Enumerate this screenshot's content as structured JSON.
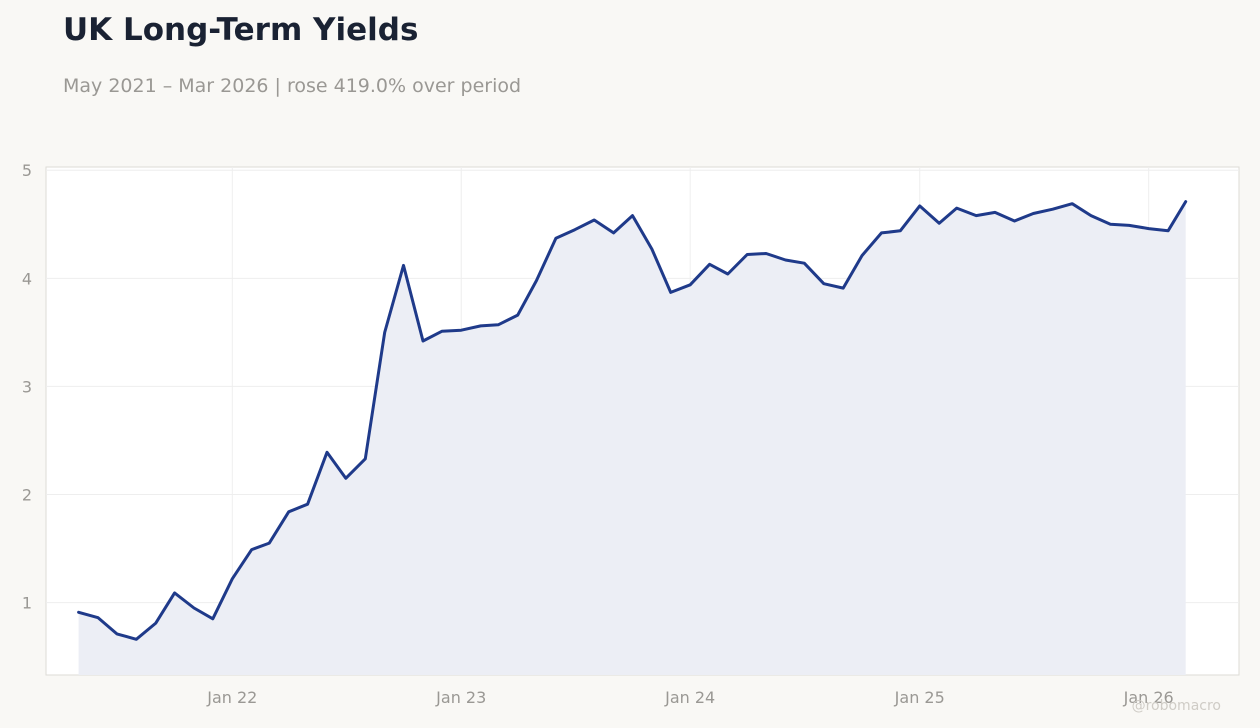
{
  "header": {
    "title": "UK Long-Term Yields",
    "subtitle": "May 2021 – Mar 2026 | rose 419.0% over period"
  },
  "watermark": "@robomacro",
  "colors": {
    "background": "#f9f8f5",
    "plot_background": "#ffffff",
    "line": "#1f3a8a",
    "fill": "#eceef5",
    "grid": "#eeeeee",
    "text_muted": "#9a9894"
  },
  "chart_data": {
    "type": "area",
    "title": "UK Long-Term Yields",
    "subtitle": "May 2021 – Mar 2026 | rose 419.0% over period",
    "xlabel": "",
    "ylabel": "",
    "x_start": "2021-05",
    "x_end": "2026-03",
    "xlim": [
      "2021-03-10",
      "2026-05-25"
    ],
    "ylim": [
      0.33,
      5.03
    ],
    "yticks": [
      1,
      2,
      3,
      4,
      5
    ],
    "xticks": [
      {
        "date": "2022-01-01",
        "label": "Jan 22"
      },
      {
        "date": "2023-01-01",
        "label": "Jan 23"
      },
      {
        "date": "2024-01-01",
        "label": "Jan 24"
      },
      {
        "date": "2025-01-01",
        "label": "Jan 25"
      },
      {
        "date": "2026-01-01",
        "label": "Jan 26"
      }
    ],
    "grid": true,
    "legend": "none",
    "series": [
      {
        "x": [
          "2021-05",
          "2021-06",
          "2021-07",
          "2021-08",
          "2021-09",
          "2021-10",
          "2021-11",
          "2021-12",
          "2022-01",
          "2022-02",
          "2022-03",
          "2022-04",
          "2022-05",
          "2022-06",
          "2022-07",
          "2022-08",
          "2022-09",
          "2022-10",
          "2022-11",
          "2022-12",
          "2023-01",
          "2023-02",
          "2023-03",
          "2023-04",
          "2023-05",
          "2023-06",
          "2023-07",
          "2023-08",
          "2023-09",
          "2023-10",
          "2023-11",
          "2023-12",
          "2024-01",
          "2024-02",
          "2024-03",
          "2024-04",
          "2024-05",
          "2024-06",
          "2024-07",
          "2024-08",
          "2024-09",
          "2024-10",
          "2024-11",
          "2024-12",
          "2025-01",
          "2025-02",
          "2025-03",
          "2025-04",
          "2025-05",
          "2025-06",
          "2025-07",
          "2025-08",
          "2025-09",
          "2025-10",
          "2025-11",
          "2025-12",
          "2026-01",
          "2026-02",
          "2026-03"
        ],
        "values": [
          0.91,
          0.86,
          0.71,
          0.66,
          0.81,
          1.09,
          0.95,
          0.85,
          1.22,
          1.49,
          1.55,
          1.84,
          1.91,
          2.39,
          2.15,
          2.33,
          3.5,
          4.12,
          3.42,
          3.51,
          3.52,
          3.56,
          3.57,
          3.66,
          3.98,
          4.37,
          4.45,
          4.54,
          4.42,
          4.58,
          4.27,
          3.87,
          3.94,
          4.13,
          4.04,
          4.22,
          4.23,
          4.17,
          4.14,
          3.95,
          3.91,
          4.21,
          4.42,
          4.44,
          4.67,
          4.51,
          4.65,
          4.58,
          4.61,
          4.53,
          4.6,
          4.64,
          4.69,
          4.58,
          4.5,
          4.49,
          4.46,
          4.44,
          4.71
        ]
      }
    ]
  }
}
